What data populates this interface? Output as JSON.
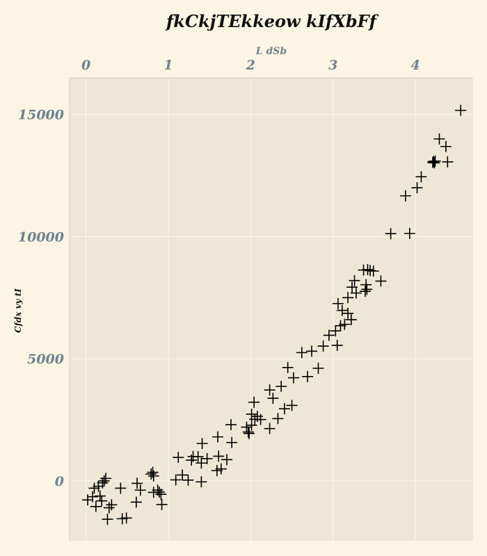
{
  "chart_data": {
    "type": "scatter",
    "title": "fkCkjTEkkeow kIfXbFf",
    "xlabel": "L dSb",
    "ylabel": "Cfdx vy tI",
    "xlim": [
      -0.2,
      4.7
    ],
    "ylim": [
      -2450,
      16500
    ],
    "x_ticks": [
      0,
      1,
      2,
      3,
      4
    ],
    "y_ticks": [
      0,
      5000,
      10000,
      15000
    ],
    "x_tick_labels": [
      "0",
      "1",
      "2",
      "3",
      "4"
    ],
    "y_tick_labels": [
      "0",
      "5000",
      "10000",
      "15000"
    ],
    "x_axis_position": "top",
    "grid": true,
    "marker": "plus",
    "colors": {
      "background": "#fcf5e4",
      "plot_area": "#efe7d6",
      "grid": "#fbf6ea",
      "marker": "#000000",
      "tick_text": "#6e8290"
    },
    "points": [
      [
        0.02,
        -780
      ],
      [
        0.08,
        -650
      ],
      [
        0.1,
        -300
      ],
      [
        0.12,
        -1050
      ],
      [
        0.15,
        -220
      ],
      [
        0.17,
        -620
      ],
      [
        0.19,
        -820
      ],
      [
        0.2,
        -80
      ],
      [
        0.22,
        0
      ],
      [
        0.24,
        100
      ],
      [
        0.26,
        -1570
      ],
      [
        0.28,
        -1100
      ],
      [
        0.31,
        -980
      ],
      [
        0.42,
        -300
      ],
      [
        0.44,
        -1550
      ],
      [
        0.49,
        -1520
      ],
      [
        0.61,
        -870
      ],
      [
        0.62,
        -100
      ],
      [
        0.66,
        -380
      ],
      [
        0.79,
        280
      ],
      [
        0.81,
        350
      ],
      [
        0.82,
        200
      ],
      [
        0.82,
        -470
      ],
      [
        0.87,
        -380
      ],
      [
        0.89,
        -460
      ],
      [
        0.91,
        -550
      ],
      [
        0.92,
        -970
      ],
      [
        1.09,
        40
      ],
      [
        1.12,
        960
      ],
      [
        1.17,
        240
      ],
      [
        1.24,
        30
      ],
      [
        1.28,
        850
      ],
      [
        1.3,
        1000
      ],
      [
        1.36,
        990
      ],
      [
        1.4,
        -40
      ],
      [
        1.4,
        730
      ],
      [
        1.41,
        1530
      ],
      [
        1.47,
        910
      ],
      [
        1.59,
        420
      ],
      [
        1.6,
        1800
      ],
      [
        1.61,
        1010
      ],
      [
        1.64,
        490
      ],
      [
        1.71,
        870
      ],
      [
        1.76,
        2300
      ],
      [
        1.77,
        1570
      ],
      [
        1.95,
        2200
      ],
      [
        1.97,
        2000
      ],
      [
        1.98,
        1940
      ],
      [
        2.01,
        2280
      ],
      [
        2.01,
        2730
      ],
      [
        2.04,
        3220
      ],
      [
        2.05,
        2520
      ],
      [
        2.08,
        2640
      ],
      [
        2.12,
        2510
      ],
      [
        2.23,
        3720
      ],
      [
        2.23,
        2140
      ],
      [
        2.27,
        3380
      ],
      [
        2.33,
        2550
      ],
      [
        2.37,
        3870
      ],
      [
        2.41,
        2950
      ],
      [
        2.45,
        4640
      ],
      [
        2.5,
        3090
      ],
      [
        2.52,
        4220
      ],
      [
        2.62,
        5250
      ],
      [
        2.69,
        4270
      ],
      [
        2.74,
        5310
      ],
      [
        2.82,
        4610
      ],
      [
        2.88,
        5520
      ],
      [
        2.95,
        5960
      ],
      [
        3.03,
        6140
      ],
      [
        3.05,
        5550
      ],
      [
        3.06,
        7260
      ],
      [
        3.09,
        6350
      ],
      [
        3.11,
        6980
      ],
      [
        3.14,
        6410
      ],
      [
        3.18,
        7500
      ],
      [
        3.18,
        6860
      ],
      [
        3.22,
        6600
      ],
      [
        3.23,
        7930
      ],
      [
        3.26,
        8200
      ],
      [
        3.28,
        7690
      ],
      [
        3.37,
        8630
      ],
      [
        3.39,
        7760
      ],
      [
        3.4,
        8030
      ],
      [
        3.41,
        7840
      ],
      [
        3.42,
        8650
      ],
      [
        3.45,
        8610
      ],
      [
        3.49,
        8590
      ],
      [
        3.58,
        8180
      ],
      [
        3.7,
        10120
      ],
      [
        3.88,
        11670
      ],
      [
        3.93,
        10130
      ],
      [
        4.02,
        12000
      ],
      [
        4.07,
        12450
      ],
      [
        4.21,
        13040
      ],
      [
        4.22,
        13080
      ],
      [
        4.23,
        13020
      ],
      [
        4.24,
        13090
      ],
      [
        4.29,
        14000
      ],
      [
        4.37,
        13690
      ],
      [
        4.39,
        13060
      ],
      [
        4.55,
        15170
      ]
    ]
  }
}
